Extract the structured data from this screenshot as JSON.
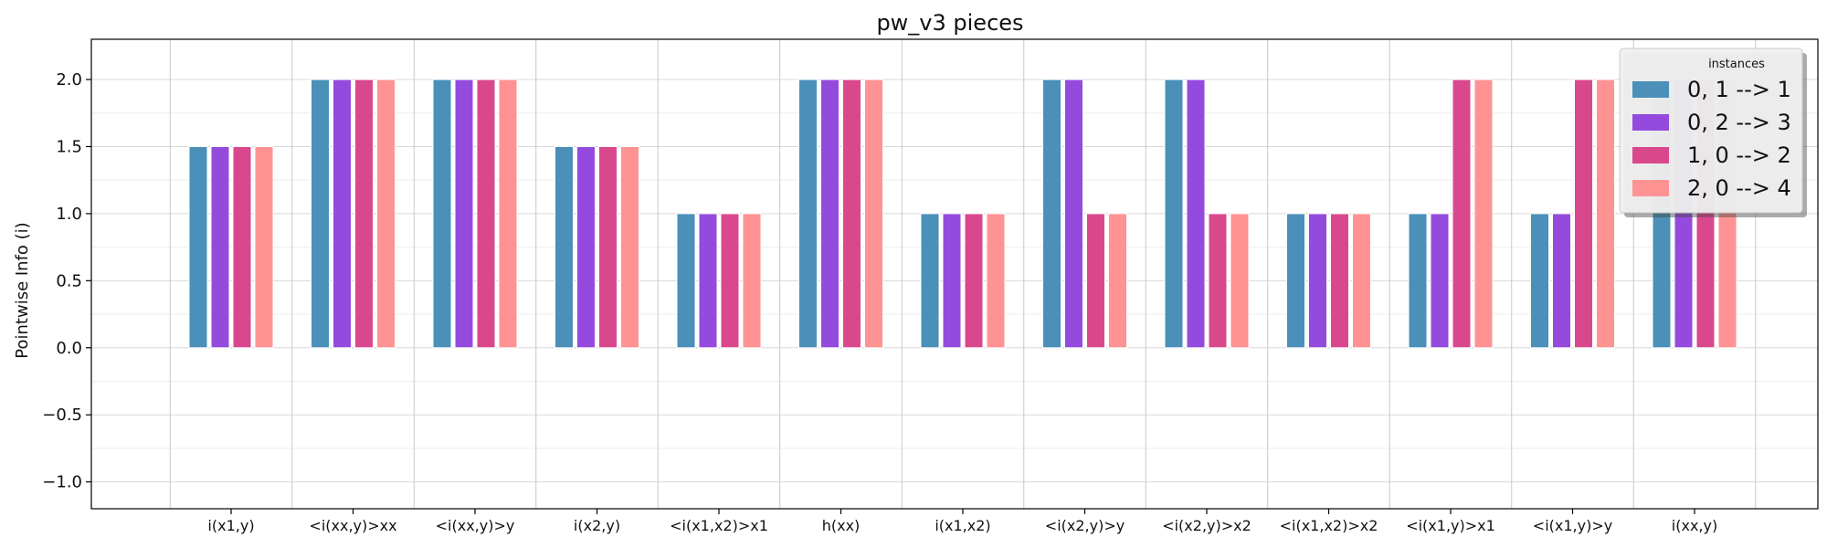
{
  "chart_data": {
    "type": "bar",
    "title": "pw_v3 pieces",
    "xlabel": "",
    "ylabel": "Pointwise Info (i)",
    "ylim": [
      -1.2,
      2.3
    ],
    "yticks": [
      -1.0,
      -0.5,
      0.0,
      0.5,
      1.0,
      1.5,
      2.0
    ],
    "ytick_labels": [
      "−1.0",
      "−0.5",
      "0.0",
      "0.5",
      "1.0",
      "1.5",
      "2.0"
    ],
    "grid": true,
    "legend": {
      "title": "instances",
      "placement": "top-right"
    },
    "categories": [
      "i(x1,y)",
      "<i(xx,y)>xx",
      "<i(xx,y)>y",
      "i(x2,y)",
      "<i(x1,x2)>x1",
      "h(xx)",
      "i(x1,x2)",
      "<i(x2,y)>y",
      "<i(x2,y)>x2",
      "<i(x1,x2)>x2",
      "<i(x1,y)>x1",
      "<i(x1,y)>y",
      "i(xx,y)"
    ],
    "series": [
      {
        "name": "0, 1 --> 1",
        "color": "#4a90b8",
        "values": [
          1.5,
          2.0,
          2.0,
          1.5,
          1.0,
          2.0,
          1.0,
          2.0,
          2.0,
          1.0,
          1.0,
          1.0,
          2.0
        ]
      },
      {
        "name": "0, 2 --> 3",
        "color": "#944bdd",
        "values": [
          1.5,
          2.0,
          2.0,
          1.5,
          1.0,
          2.0,
          1.0,
          2.0,
          2.0,
          1.0,
          1.0,
          1.0,
          2.0
        ]
      },
      {
        "name": "1, 0 --> 2",
        "color": "#d9488d",
        "values": [
          1.5,
          2.0,
          2.0,
          1.5,
          1.0,
          2.0,
          1.0,
          1.0,
          1.0,
          1.0,
          2.0,
          2.0,
          2.0
        ]
      },
      {
        "name": "2, 0 --> 4",
        "color": "#ff9393",
        "values": [
          1.5,
          2.0,
          2.0,
          1.5,
          1.0,
          2.0,
          1.0,
          1.0,
          1.0,
          1.0,
          2.0,
          2.0,
          2.0
        ]
      }
    ]
  }
}
